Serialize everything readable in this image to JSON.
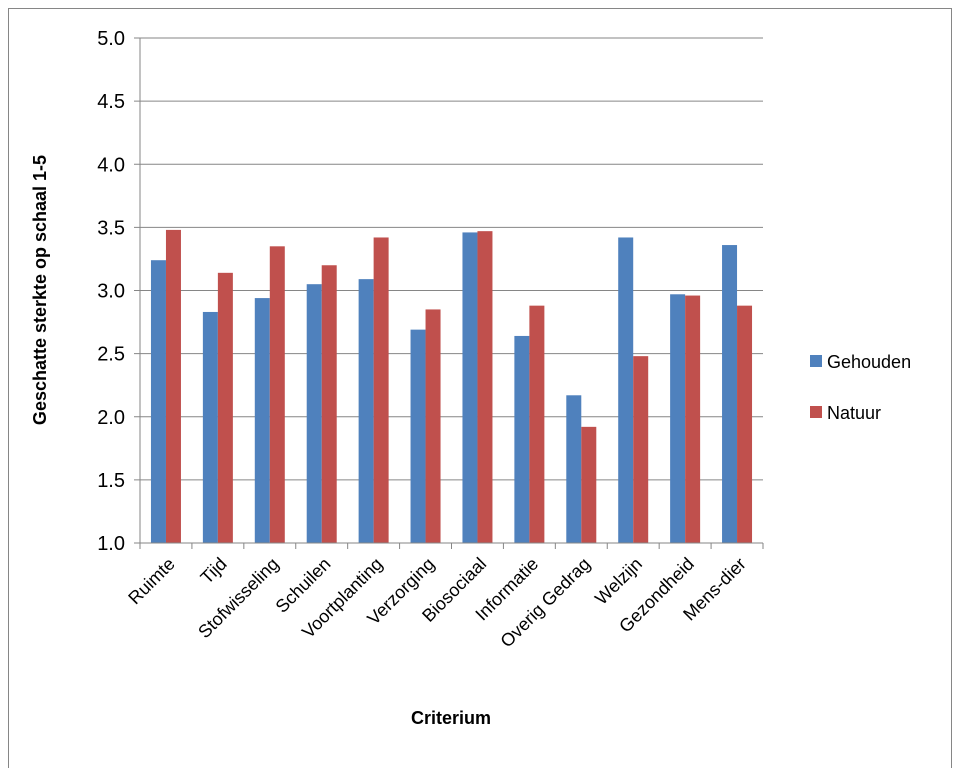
{
  "chart_data": {
    "type": "bar",
    "title": "",
    "xlabel": "Criterium",
    "ylabel": "Geschatte sterkte op schaal 1-5",
    "ylim": [
      1.0,
      5.0
    ],
    "ytick_labels": [
      "1.0",
      "1.5",
      "2.0",
      "2.5",
      "3.0",
      "3.5",
      "4.0",
      "4.5",
      "5.0"
    ],
    "grid": true,
    "legend_position": "right",
    "categories": [
      "Ruimte",
      "Tijd",
      "Stofwisseling",
      "Schuilen",
      "Voortplanting",
      "Verzorging",
      "Biosociaal",
      "Informatie",
      "Overig Gedrag",
      "Welzijn",
      "Gezondheid",
      "Mens-dier"
    ],
    "series": [
      {
        "name": "Gehouden",
        "color": "#4F81BD",
        "values": [
          3.24,
          2.83,
          2.94,
          3.05,
          3.09,
          2.69,
          3.46,
          2.64,
          2.17,
          3.42,
          2.97,
          3.36
        ]
      },
      {
        "name": "Natuur",
        "color": "#C0504D",
        "values": [
          3.48,
          3.14,
          3.35,
          3.2,
          3.42,
          2.85,
          3.47,
          2.88,
          1.92,
          2.48,
          2.96,
          2.88
        ]
      }
    ]
  }
}
